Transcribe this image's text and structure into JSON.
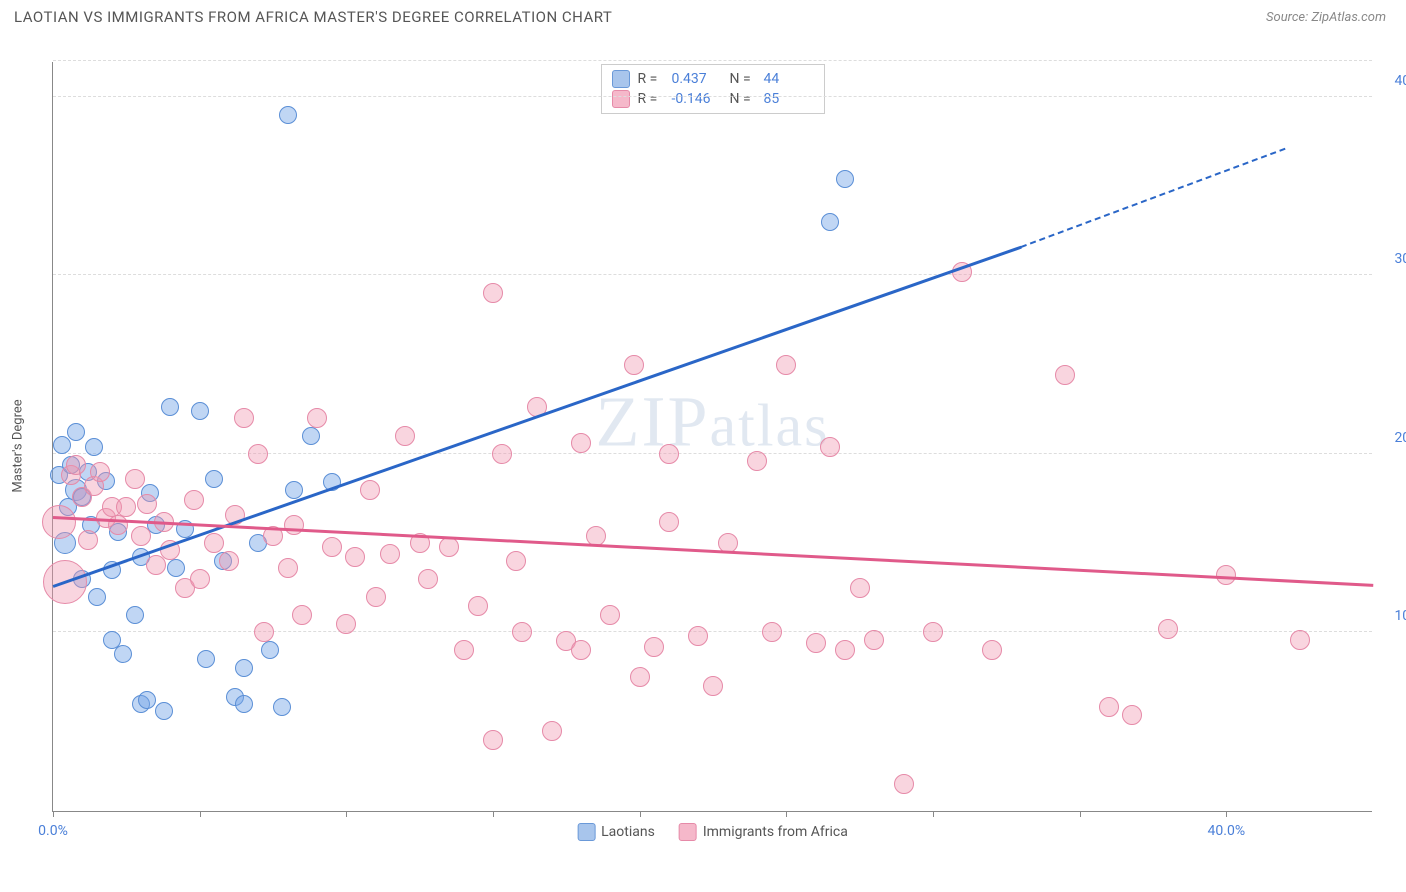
{
  "header": {
    "title": "LAOTIAN VS IMMIGRANTS FROM AFRICA MASTER'S DEGREE CORRELATION CHART",
    "source_prefix": "Source: ",
    "source_name": "ZipAtlas.com"
  },
  "watermark": "ZIPatlas",
  "chart": {
    "type": "scatter",
    "y_axis_title": "Master's Degree",
    "background_color": "#ffffff",
    "grid_color": "#dddddd",
    "axis_color": "#888888",
    "tick_label_color": "#4a7fd8",
    "xlim": [
      0,
      45
    ],
    "ylim": [
      0,
      42
    ],
    "x_ticks": [
      0,
      5,
      10,
      15,
      20,
      25,
      30,
      35,
      40
    ],
    "x_tick_labels": {
      "0": "0.0%",
      "40": "40.0%"
    },
    "y_gridlines": [
      10,
      20,
      30,
      40,
      42
    ],
    "y_tick_labels": {
      "10": "10.0%",
      "20": "20.0%",
      "30": "30.0%",
      "40": "40.0%"
    },
    "series": [
      {
        "id": "laotians",
        "label": "Laotians",
        "fill": "rgba(115, 163, 230, 0.45)",
        "stroke": "#5b8fd6",
        "swatch_fill": "#a8c5ec",
        "swatch_stroke": "#6a99d8",
        "r_value": "0.437",
        "n_value": "44",
        "trend": {
          "color": "#2a66c7",
          "x1": 0,
          "y1": 12.5,
          "x2": 33,
          "y2": 31.5,
          "dash_from_x": 33,
          "x2_dash": 42,
          "y2_dash": 37
        },
        "marker_radius": 9,
        "points": [
          [
            0.2,
            18.8,
            9
          ],
          [
            0.3,
            20.5,
            9
          ],
          [
            0.4,
            15.0,
            11
          ],
          [
            0.5,
            17.0,
            9
          ],
          [
            0.6,
            19.4,
            9
          ],
          [
            0.8,
            21.2,
            9
          ],
          [
            0.8,
            18.0,
            11
          ],
          [
            1.0,
            17.6,
            9
          ],
          [
            1.0,
            13.0,
            9
          ],
          [
            1.2,
            19.0,
            9
          ],
          [
            1.3,
            16.0,
            9
          ],
          [
            1.4,
            20.4,
            9
          ],
          [
            1.5,
            12.0,
            9
          ],
          [
            1.8,
            18.5,
            9
          ],
          [
            2.0,
            9.6,
            9
          ],
          [
            2.0,
            13.5,
            9
          ],
          [
            2.2,
            15.6,
            9
          ],
          [
            2.4,
            8.8,
            9
          ],
          [
            2.8,
            11.0,
            9
          ],
          [
            3.0,
            14.2,
            9
          ],
          [
            3.0,
            6.0,
            9
          ],
          [
            3.2,
            6.2,
            9
          ],
          [
            3.3,
            17.8,
            9
          ],
          [
            3.5,
            16.0,
            9
          ],
          [
            3.8,
            5.6,
            9
          ],
          [
            4.0,
            22.6,
            9
          ],
          [
            4.2,
            13.6,
            9
          ],
          [
            4.5,
            15.8,
            9
          ],
          [
            5.0,
            22.4,
            9
          ],
          [
            5.2,
            8.5,
            9
          ],
          [
            5.5,
            18.6,
            9
          ],
          [
            5.8,
            14.0,
            9
          ],
          [
            6.2,
            6.4,
            9
          ],
          [
            6.5,
            8.0,
            9
          ],
          [
            6.5,
            6.0,
            9
          ],
          [
            7.0,
            15.0,
            9
          ],
          [
            7.4,
            9.0,
            9
          ],
          [
            7.8,
            5.8,
            9
          ],
          [
            8.0,
            39.0,
            9
          ],
          [
            8.2,
            18.0,
            9
          ],
          [
            8.8,
            21.0,
            9
          ],
          [
            9.5,
            18.4,
            9
          ],
          [
            26.5,
            33.0,
            9
          ],
          [
            27.0,
            35.4,
            9
          ]
        ]
      },
      {
        "id": "africa",
        "label": "Immigrants from Africa",
        "fill": "rgba(240, 150, 175, 0.40)",
        "stroke": "#e68aa8",
        "swatch_fill": "#f5b8ca",
        "swatch_stroke": "#e68aa8",
        "r_value": "-0.146",
        "n_value": "85",
        "trend": {
          "color": "#e05a8a",
          "x1": 0,
          "y1": 16.4,
          "x2": 45,
          "y2": 12.6
        },
        "marker_radius": 10,
        "points": [
          [
            0.2,
            16.2,
            17
          ],
          [
            0.4,
            12.8,
            22
          ],
          [
            0.6,
            18.8,
            10
          ],
          [
            0.8,
            19.4,
            10
          ],
          [
            1.0,
            17.6,
            10
          ],
          [
            1.2,
            15.2,
            10
          ],
          [
            1.4,
            18.2,
            10
          ],
          [
            1.6,
            19.0,
            10
          ],
          [
            1.8,
            16.4,
            10
          ],
          [
            2.0,
            17.0,
            10
          ],
          [
            2.2,
            16.0,
            10
          ],
          [
            2.5,
            17.0,
            10
          ],
          [
            2.8,
            18.6,
            10
          ],
          [
            3.0,
            15.4,
            10
          ],
          [
            3.2,
            17.2,
            10
          ],
          [
            3.5,
            13.8,
            10
          ],
          [
            3.8,
            16.2,
            10
          ],
          [
            4.0,
            14.6,
            10
          ],
          [
            4.5,
            12.5,
            10
          ],
          [
            4.8,
            17.4,
            10
          ],
          [
            5.0,
            13.0,
            10
          ],
          [
            5.5,
            15.0,
            10
          ],
          [
            6.0,
            14.0,
            10
          ],
          [
            6.2,
            16.6,
            10
          ],
          [
            6.5,
            22.0,
            10
          ],
          [
            7.0,
            20.0,
            10
          ],
          [
            7.2,
            10.0,
            10
          ],
          [
            7.5,
            15.4,
            10
          ],
          [
            8.0,
            13.6,
            10
          ],
          [
            8.2,
            16.0,
            10
          ],
          [
            8.5,
            11.0,
            10
          ],
          [
            9.0,
            22.0,
            10
          ],
          [
            9.5,
            14.8,
            10
          ],
          [
            10.0,
            10.5,
            10
          ],
          [
            10.3,
            14.2,
            10
          ],
          [
            10.8,
            18.0,
            10
          ],
          [
            11.0,
            12.0,
            10
          ],
          [
            11.5,
            14.4,
            10
          ],
          [
            12.0,
            21.0,
            10
          ],
          [
            12.5,
            15.0,
            10
          ],
          [
            12.8,
            13.0,
            10
          ],
          [
            13.5,
            14.8,
            10
          ],
          [
            14.0,
            9.0,
            10
          ],
          [
            14.5,
            11.5,
            10
          ],
          [
            15.0,
            4.0,
            10
          ],
          [
            15.0,
            29.0,
            10
          ],
          [
            15.3,
            20.0,
            10
          ],
          [
            15.8,
            14.0,
            10
          ],
          [
            16.0,
            10.0,
            10
          ],
          [
            16.5,
            22.6,
            10
          ],
          [
            17.0,
            4.5,
            10
          ],
          [
            17.5,
            9.5,
            10
          ],
          [
            18.0,
            20.6,
            10
          ],
          [
            18.0,
            9.0,
            10
          ],
          [
            18.5,
            15.4,
            10
          ],
          [
            19.0,
            11.0,
            10
          ],
          [
            19.8,
            25.0,
            10
          ],
          [
            20.0,
            7.5,
            10
          ],
          [
            20.5,
            9.2,
            10
          ],
          [
            21.0,
            16.2,
            10
          ],
          [
            21.0,
            20.0,
            10
          ],
          [
            22.0,
            9.8,
            10
          ],
          [
            22.5,
            7.0,
            10
          ],
          [
            23.0,
            15.0,
            10
          ],
          [
            24.0,
            19.6,
            10
          ],
          [
            24.5,
            10.0,
            10
          ],
          [
            25.0,
            25.0,
            10
          ],
          [
            26.0,
            9.4,
            10
          ],
          [
            26.5,
            20.4,
            10
          ],
          [
            27.0,
            9.0,
            10
          ],
          [
            27.5,
            12.5,
            10
          ],
          [
            28.0,
            9.6,
            10
          ],
          [
            29.0,
            1.5,
            10
          ],
          [
            30.0,
            10.0,
            10
          ],
          [
            31.0,
            30.2,
            10
          ],
          [
            32.0,
            9.0,
            10
          ],
          [
            34.5,
            24.4,
            10
          ],
          [
            36.0,
            5.8,
            10
          ],
          [
            36.8,
            5.4,
            10
          ],
          [
            38.0,
            10.2,
            10
          ],
          [
            40.0,
            13.2,
            10
          ],
          [
            42.5,
            9.6,
            10
          ]
        ]
      }
    ],
    "stats_legend": {
      "r_label": "R =",
      "n_label": "N ="
    }
  }
}
